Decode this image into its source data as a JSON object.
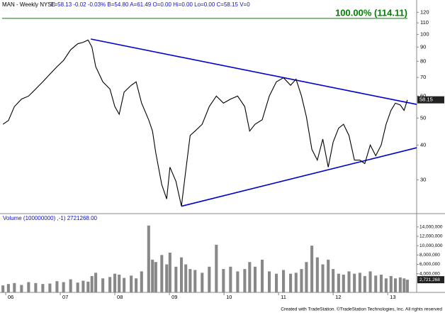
{
  "chart_data": [
    {
      "type": "line",
      "title": "MAN - Weekly  NYSE",
      "subtitle": "L=58.13 -0.02 -0.03% B=54.80 A=61.49 O=0.00 Hi=0.00 Lo=0.00 C=58.15 V=0",
      "log_scale": true,
      "xlim": [
        2005.896,
        2013.53
      ],
      "ylim": [
        22.8,
        129.8
      ],
      "yticks": [
        30,
        40,
        50,
        60,
        70,
        80,
        90,
        100,
        110,
        120
      ],
      "x": [
        2005.95,
        2006.05,
        2006.16,
        2006.29,
        2006.42,
        2006.55,
        2006.68,
        2006.81,
        2006.94,
        2007.06,
        2007.19,
        2007.32,
        2007.42,
        2007.51,
        2007.58,
        2007.65,
        2007.78,
        2007.91,
        2008.0,
        2008.08,
        2008.17,
        2008.3,
        2008.39,
        2008.49,
        2008.62,
        2008.69,
        2008.75,
        2008.86,
        2008.95,
        2009.01,
        2009.12,
        2009.22,
        2009.3,
        2009.38,
        2009.47,
        2009.6,
        2009.73,
        2009.86,
        2009.99,
        2010.12,
        2010.25,
        2010.38,
        2010.47,
        2010.57,
        2010.7,
        2010.83,
        2010.96,
        2011.09,
        2011.22,
        2011.32,
        2011.42,
        2011.51,
        2011.61,
        2011.71,
        2011.81,
        2011.91,
        2012.0,
        2012.1,
        2012.19,
        2012.29,
        2012.39,
        2012.49,
        2012.58,
        2012.68,
        2012.78,
        2012.88,
        2012.97,
        2013.06,
        2013.14,
        2013.23,
        2013.3,
        2013.36
      ],
      "series": [
        {
          "color": "#000000",
          "values": [
            47.5,
            49,
            55,
            58.5,
            60,
            63.6,
            67.5,
            71.9,
            76.5,
            80.6,
            88,
            92.5,
            93.6,
            95.4,
            90,
            76.5,
            67.5,
            63.6,
            55,
            51.6,
            62,
            65.6,
            67.5,
            56.6,
            49.3,
            44.9,
            37.5,
            28.8,
            25.6,
            33.3,
            29.6,
            24.1,
            32.4,
            43.3,
            44.9,
            47.5,
            55,
            60,
            56.6,
            58.5,
            60,
            55,
            44.9,
            47.5,
            49.3,
            60,
            67.5,
            69.8,
            65.6,
            69,
            60,
            50.5,
            38.6,
            35.3,
            42,
            33.3,
            41,
            46,
            47.5,
            43.3,
            35.3,
            35.3,
            34.3,
            40,
            36.6,
            40,
            47.5,
            53.3,
            56.6,
            55.7,
            53.3,
            58.15
          ]
        }
      ],
      "trendlines": [
        {
          "color": "#0000cc",
          "x": [
            2007.56,
            2013.53
          ],
          "values": [
            96.2,
            56
          ]
        },
        {
          "color": "#0000cc",
          "x": [
            2009.22,
            2013.53
          ],
          "values": [
            24.1,
            39.1
          ]
        }
      ],
      "ref_line": {
        "value": 114.11,
        "label": "100.00% (114.11)",
        "color": "#008000"
      }
    },
    {
      "type": "bar",
      "title": "Volume (100000000) ,-1)  2721268.00",
      "xlim": [
        2005.896,
        2013.53
      ],
      "ylim": [
        0,
        16700000
      ],
      "yticks": [
        {
          "value": 4000000,
          "label": "4,000,000"
        },
        {
          "value": 6000000,
          "label": "6,000,000"
        },
        {
          "value": 8000000,
          "label": "8,000,000"
        },
        {
          "value": 10000000,
          "label": "10,000,000"
        },
        {
          "value": 12000000,
          "label": "12,000,000"
        },
        {
          "value": 14000000,
          "label": "14,000,000"
        }
      ],
      "xticks": [
        {
          "value": 2006,
          "label": "06"
        },
        {
          "value": 2007,
          "label": "07"
        },
        {
          "value": 2008,
          "label": "08"
        },
        {
          "value": 2009,
          "label": "09"
        },
        {
          "value": 2010,
          "label": "10"
        },
        {
          "value": 2011,
          "label": "11"
        },
        {
          "value": 2012,
          "label": "12"
        },
        {
          "value": 2013,
          "label": "13"
        }
      ],
      "x": [
        2005.95,
        2006.05,
        2006.16,
        2006.29,
        2006.42,
        2006.55,
        2006.68,
        2006.81,
        2006.94,
        2007.06,
        2007.19,
        2007.32,
        2007.42,
        2007.51,
        2007.58,
        2007.65,
        2007.78,
        2007.91,
        2008.0,
        2008.08,
        2008.17,
        2008.3,
        2008.39,
        2008.49,
        2008.62,
        2008.69,
        2008.75,
        2008.86,
        2008.95,
        2009.01,
        2009.12,
        2009.22,
        2009.3,
        2009.38,
        2009.47,
        2009.6,
        2009.73,
        2009.86,
        2009.99,
        2010.12,
        2010.25,
        2010.38,
        2010.47,
        2010.57,
        2010.7,
        2010.83,
        2010.96,
        2011.09,
        2011.22,
        2011.32,
        2011.42,
        2011.51,
        2011.61,
        2011.71,
        2011.81,
        2011.91,
        2012.0,
        2012.1,
        2012.19,
        2012.29,
        2012.39,
        2012.49,
        2012.58,
        2012.68,
        2012.78,
        2012.88,
        2012.97,
        2013.06,
        2013.14,
        2013.23,
        2013.3,
        2013.36
      ],
      "series": [
        {
          "color": "#888888",
          "values": [
            1500000,
            1800000,
            2000000,
            1600000,
            2200000,
            2000000,
            1800000,
            1900000,
            2400000,
            2200000,
            2800000,
            2100000,
            2500000,
            2300000,
            3500000,
            4200000,
            3000000,
            3300000,
            4000000,
            3800000,
            3100000,
            3600000,
            3000000,
            4500000,
            14300000,
            7000000,
            6500000,
            8000000,
            6000000,
            8500000,
            5500000,
            7500000,
            6000000,
            5000000,
            4800000,
            4200000,
            5500000,
            10200000,
            5000000,
            5500000,
            4500000,
            5000000,
            6500000,
            5500000,
            7000000,
            4500000,
            4000000,
            4800000,
            4000000,
            4200000,
            5000000,
            6500000,
            10000000,
            7500000,
            6000000,
            7000000,
            5000000,
            4000000,
            3800000,
            4500000,
            4000000,
            4200000,
            3500000,
            4500000,
            3600000,
            3800000,
            3000000,
            3500000,
            3000000,
            3200000,
            3000000,
            2721268
          ],
          "value_labels": [
            null,
            null,
            null,
            null,
            null,
            null,
            null,
            null,
            null,
            null,
            null,
            null,
            null,
            null,
            null,
            null,
            null,
            null,
            null,
            null,
            null,
            null,
            null,
            null,
            null,
            null,
            null,
            null,
            null,
            null,
            null,
            null,
            null,
            null,
            null,
            null,
            null,
            null,
            null,
            null,
            null,
            null,
            null,
            null,
            null,
            null,
            null,
            null,
            null,
            null,
            null,
            null,
            null,
            null,
            null,
            null,
            null,
            null,
            null,
            null,
            null,
            null,
            null,
            null,
            null,
            null,
            null,
            null,
            null,
            null,
            null,
            "2,721,268"
          ]
        }
      ]
    }
  ],
  "footer": "Created with TradeStation. ©TradeStation Technologies, Inc. All rights reserved"
}
